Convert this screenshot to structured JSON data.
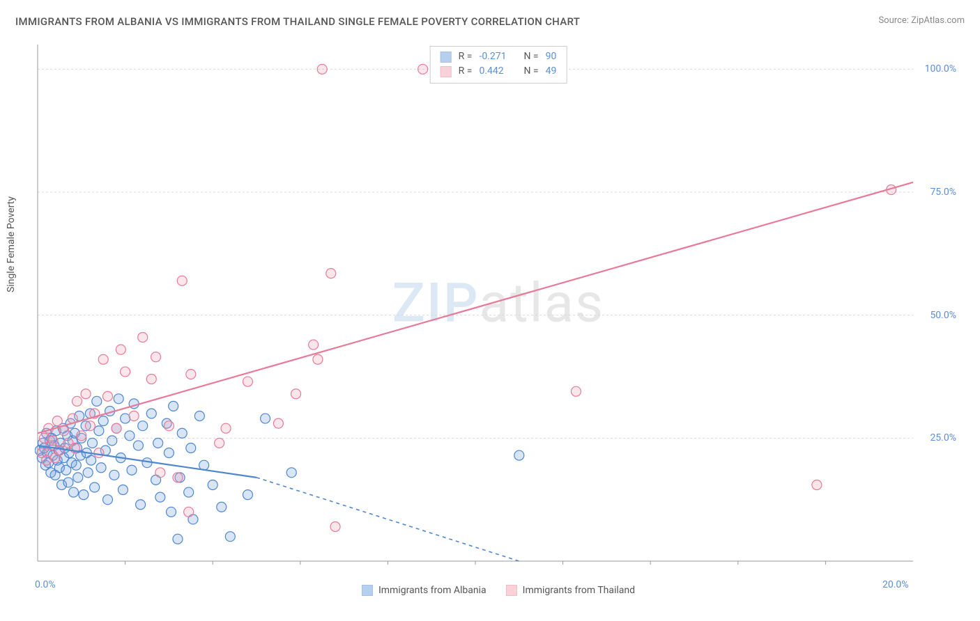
{
  "title": "IMMIGRANTS FROM ALBANIA VS IMMIGRANTS FROM THAILAND SINGLE FEMALE POVERTY CORRELATION CHART",
  "source_label": "Source:",
  "source_name": "ZipAtlas.com",
  "watermark_a": "ZIP",
  "watermark_b": "atlas",
  "y_axis_label": "Single Female Poverty",
  "chart": {
    "type": "scatter",
    "background_color": "#ffffff",
    "grid_color": "#d9d9d9",
    "axis_border_color": "#999999",
    "xlim": [
      0,
      20
    ],
    "ylim": [
      0,
      105
    ],
    "x_ticks": [
      0,
      20
    ],
    "x_tick_labels": [
      "0.0%",
      "20.0%"
    ],
    "y_ticks": [
      25,
      50,
      75,
      100
    ],
    "y_tick_labels": [
      "25.0%",
      "50.0%",
      "75.0%",
      "100.0%"
    ],
    "x_minor_ticks": [
      2,
      4,
      6,
      8,
      10,
      12,
      14,
      16,
      18
    ],
    "marker_radius": 7,
    "marker_stroke_width": 1.2,
    "marker_fill_opacity": 0.28,
    "series": [
      {
        "name": "Immigrants from Albania",
        "color": "#6ea2e0",
        "stroke": "#4f86cf",
        "stats": {
          "R": "-0.271",
          "N": "90"
        },
        "trend": {
          "x1": 0,
          "y1": 23.5,
          "x2_solid": 5.0,
          "y2_solid": 17.0,
          "x2_dash": 11.0,
          "y2_dash": 0.0
        },
        "points": [
          [
            0.05,
            22.5
          ],
          [
            0.1,
            21.0
          ],
          [
            0.12,
            24.0
          ],
          [
            0.15,
            23.0
          ],
          [
            0.18,
            19.5
          ],
          [
            0.2,
            26.0
          ],
          [
            0.22,
            22.0
          ],
          [
            0.25,
            20.0
          ],
          [
            0.28,
            24.5
          ],
          [
            0.3,
            18.0
          ],
          [
            0.32,
            25.0
          ],
          [
            0.35,
            21.5
          ],
          [
            0.38,
            23.5
          ],
          [
            0.4,
            17.5
          ],
          [
            0.42,
            26.5
          ],
          [
            0.45,
            20.5
          ],
          [
            0.48,
            22.5
          ],
          [
            0.5,
            19.0
          ],
          [
            0.52,
            24.0
          ],
          [
            0.55,
            15.5
          ],
          [
            0.58,
            27.0
          ],
          [
            0.6,
            21.0
          ],
          [
            0.62,
            23.0
          ],
          [
            0.65,
            18.5
          ],
          [
            0.68,
            25.5
          ],
          [
            0.7,
            16.0
          ],
          [
            0.72,
            22.0
          ],
          [
            0.75,
            28.0
          ],
          [
            0.78,
            20.0
          ],
          [
            0.8,
            24.5
          ],
          [
            0.82,
            14.0
          ],
          [
            0.85,
            26.0
          ],
          [
            0.88,
            19.5
          ],
          [
            0.9,
            23.0
          ],
          [
            0.92,
            17.0
          ],
          [
            0.95,
            29.5
          ],
          [
            0.98,
            21.5
          ],
          [
            1.0,
            25.0
          ],
          [
            1.05,
            13.5
          ],
          [
            1.1,
            27.5
          ],
          [
            1.12,
            22.0
          ],
          [
            1.15,
            18.0
          ],
          [
            1.2,
            30.0
          ],
          [
            1.22,
            20.5
          ],
          [
            1.25,
            24.0
          ],
          [
            1.3,
            15.0
          ],
          [
            1.35,
            32.5
          ],
          [
            1.4,
            26.5
          ],
          [
            1.45,
            19.0
          ],
          [
            1.5,
            28.5
          ],
          [
            1.55,
            22.5
          ],
          [
            1.6,
            12.5
          ],
          [
            1.65,
            30.5
          ],
          [
            1.7,
            24.5
          ],
          [
            1.75,
            17.5
          ],
          [
            1.8,
            27.0
          ],
          [
            1.85,
            33.0
          ],
          [
            1.9,
            21.0
          ],
          [
            1.95,
            14.5
          ],
          [
            2.0,
            29.0
          ],
          [
            2.1,
            25.5
          ],
          [
            2.15,
            18.5
          ],
          [
            2.2,
            32.0
          ],
          [
            2.3,
            23.5
          ],
          [
            2.35,
            11.5
          ],
          [
            2.4,
            27.5
          ],
          [
            2.5,
            20.0
          ],
          [
            2.6,
            30.0
          ],
          [
            2.7,
            16.5
          ],
          [
            2.75,
            24.0
          ],
          [
            2.8,
            13.0
          ],
          [
            2.95,
            28.0
          ],
          [
            3.0,
            22.0
          ],
          [
            3.05,
            10.0
          ],
          [
            3.1,
            31.5
          ],
          [
            3.2,
            4.5
          ],
          [
            3.25,
            17.0
          ],
          [
            3.3,
            26.0
          ],
          [
            3.45,
            14.0
          ],
          [
            3.5,
            23.0
          ],
          [
            3.55,
            8.5
          ],
          [
            3.7,
            29.5
          ],
          [
            3.8,
            19.5
          ],
          [
            4.0,
            15.5
          ],
          [
            4.2,
            11.0
          ],
          [
            4.4,
            5.0
          ],
          [
            4.8,
            13.5
          ],
          [
            5.2,
            29.0
          ],
          [
            5.8,
            18.0
          ],
          [
            11.0,
            21.5
          ]
        ]
      },
      {
        "name": "Immigrants from Thailand",
        "color": "#f0a6b8",
        "stroke": "#e77a97",
        "stats": {
          "R": "0.442",
          "N": "49"
        },
        "trend": {
          "x1": 0,
          "y1": 26.0,
          "x2_solid": 20.0,
          "y2_solid": 77.0,
          "x2_dash": 20.0,
          "y2_dash": 77.0
        },
        "points": [
          [
            0.1,
            22.0
          ],
          [
            0.15,
            25.0
          ],
          [
            0.2,
            20.5
          ],
          [
            0.25,
            27.0
          ],
          [
            0.3,
            23.5
          ],
          [
            0.35,
            24.5
          ],
          [
            0.4,
            21.0
          ],
          [
            0.45,
            28.5
          ],
          [
            0.5,
            22.5
          ],
          [
            0.6,
            26.5
          ],
          [
            0.7,
            24.0
          ],
          [
            0.8,
            29.0
          ],
          [
            0.85,
            23.0
          ],
          [
            0.9,
            32.5
          ],
          [
            1.0,
            25.5
          ],
          [
            1.1,
            34.0
          ],
          [
            1.2,
            27.5
          ],
          [
            1.3,
            30.0
          ],
          [
            1.4,
            22.0
          ],
          [
            1.5,
            41.0
          ],
          [
            1.6,
            33.5
          ],
          [
            1.8,
            27.0
          ],
          [
            1.9,
            43.0
          ],
          [
            2.0,
            38.5
          ],
          [
            2.2,
            29.5
          ],
          [
            2.4,
            45.5
          ],
          [
            2.6,
            37.0
          ],
          [
            2.7,
            41.5
          ],
          [
            2.8,
            18.0
          ],
          [
            3.0,
            27.5
          ],
          [
            3.2,
            17.0
          ],
          [
            3.3,
            57.0
          ],
          [
            3.45,
            10.0
          ],
          [
            3.5,
            38.0
          ],
          [
            4.15,
            24.0
          ],
          [
            4.3,
            27.0
          ],
          [
            4.8,
            36.5
          ],
          [
            5.5,
            28.0
          ],
          [
            5.9,
            34.0
          ],
          [
            6.3,
            44.0
          ],
          [
            6.4,
            41.0
          ],
          [
            6.5,
            100.0
          ],
          [
            6.7,
            58.5
          ],
          [
            6.8,
            7.0
          ],
          [
            8.8,
            100.0
          ],
          [
            10.8,
            100.0
          ],
          [
            12.3,
            34.5
          ],
          [
            17.8,
            15.5
          ],
          [
            19.5,
            75.5
          ]
        ]
      }
    ],
    "legend": {
      "stats_labels": {
        "R": "R =",
        "N": "N ="
      }
    }
  }
}
